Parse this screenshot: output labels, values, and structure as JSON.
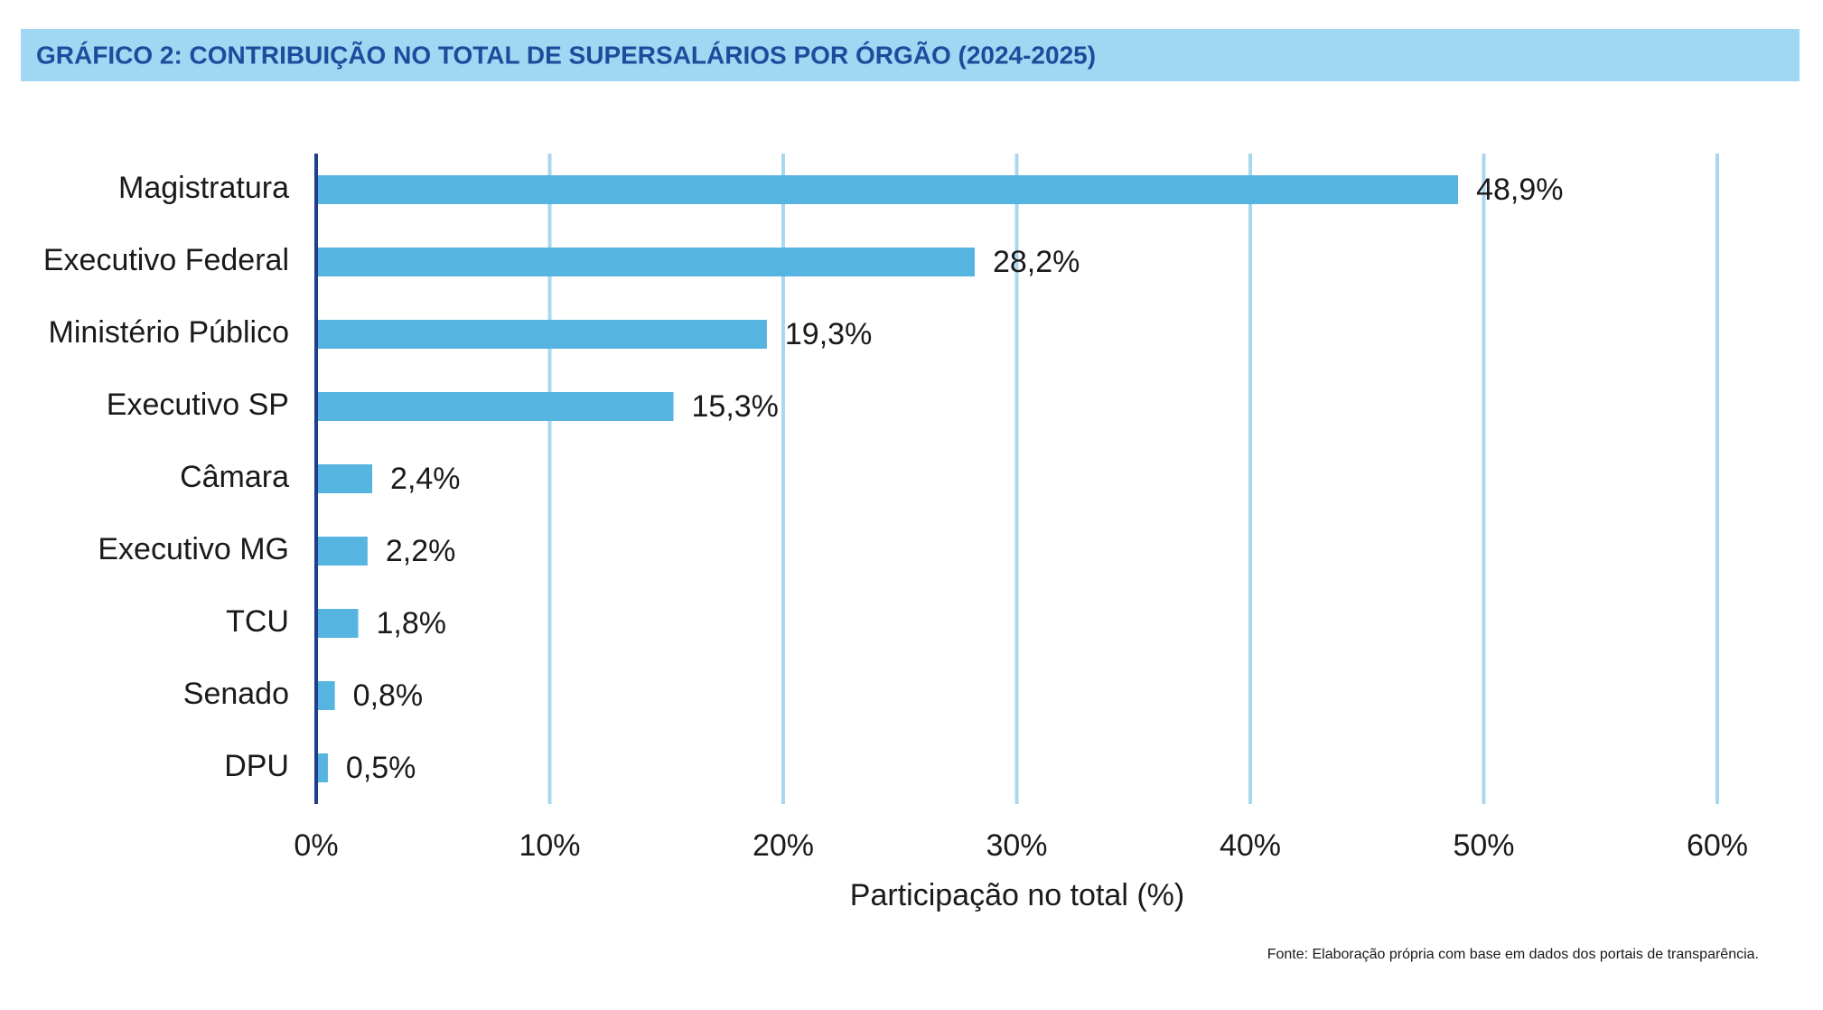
{
  "chart_data": {
    "type": "barh",
    "title": "GRÁFICO 2: CONTRIBUIÇÃO NO TOTAL DE SUPERSALÁRIOS POR ÓRGÃO (2024-2025)",
    "x_label": "Participação no total (%)",
    "source": "Fonte: Elaboração própria com base em dados dos portais de transparência.",
    "categories": [
      "Magistratura",
      "Executivo Federal",
      "Ministério Público",
      "Executivo SP",
      "Câmara",
      "Executivo MG",
      "TCU",
      "Senado",
      "DPU"
    ],
    "values": [
      48.9,
      28.2,
      19.3,
      15.3,
      2.4,
      2.2,
      1.8,
      0.8,
      0.5
    ],
    "value_labels": [
      "48,9%",
      "28,2%",
      "19,3%",
      "15,3%",
      "2,4%",
      "2,2%",
      "1,8%",
      "0,8%",
      "0,5%"
    ],
    "color": "#56b4e0",
    "xlim": [
      0,
      60
    ],
    "xticks": [
      {
        "value": 0,
        "label": "0%"
      },
      {
        "value": 10,
        "label": "10%"
      },
      {
        "value": 20,
        "label": "20%"
      },
      {
        "value": 30,
        "label": "30%"
      },
      {
        "value": 40,
        "label": "40%"
      },
      {
        "value": 50,
        "label": "50%"
      },
      {
        "value": 60,
        "label": "60%"
      }
    ],
    "grid": true
  }
}
